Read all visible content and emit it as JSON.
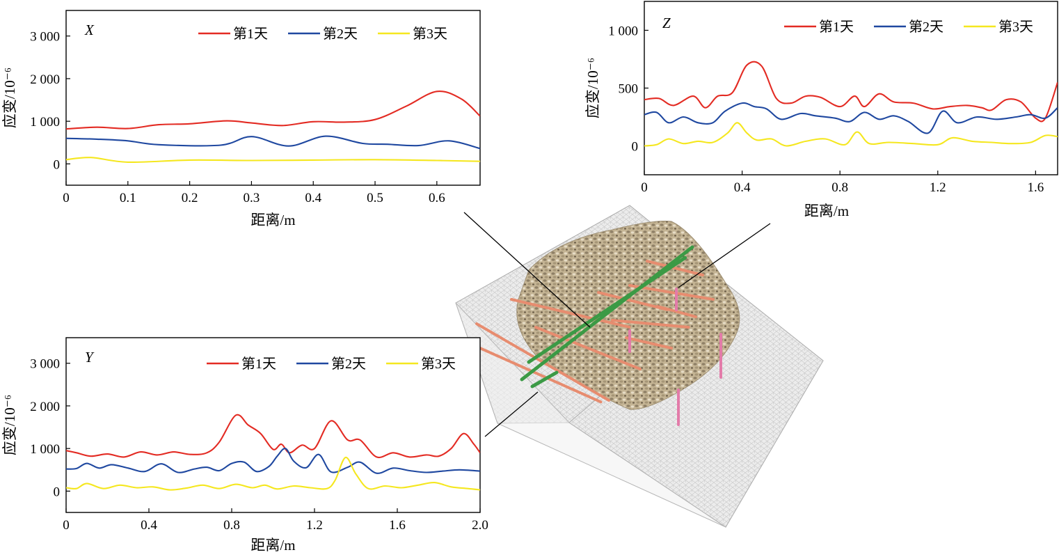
{
  "colors": {
    "day1": "#e32b23",
    "day2": "#1f48a0",
    "day3": "#f5e71f",
    "axis": "#000000"
  },
  "chart_data": [
    {
      "id": "X",
      "type": "line",
      "panel_label": "X",
      "xlabel": "距离/m",
      "ylabel": "应变/10⁻⁶",
      "xlim": [
        0,
        0.67
      ],
      "ylim": [
        -500,
        3600
      ],
      "xticks": [
        0,
        0.1,
        0.2,
        0.3,
        0.4,
        0.5,
        0.6
      ],
      "xtick_labels": [
        "0",
        "0.1",
        "0.2",
        "0.3",
        "0.4",
        "0.5",
        "0.6"
      ],
      "yticks": [
        0,
        1000,
        2000,
        3000
      ],
      "ytick_labels": [
        "0",
        "1 000",
        "2 000",
        "3 000"
      ],
      "legend_position": "top-right",
      "grid": false,
      "series": [
        {
          "name": "第1天",
          "color": "#e32b23",
          "points": [
            [
              0,
              820
            ],
            [
              0.05,
              860
            ],
            [
              0.1,
              830
            ],
            [
              0.15,
              920
            ],
            [
              0.2,
              940
            ],
            [
              0.26,
              1010
            ],
            [
              0.3,
              960
            ],
            [
              0.35,
              900
            ],
            [
              0.4,
              990
            ],
            [
              0.45,
              980
            ],
            [
              0.5,
              1040
            ],
            [
              0.55,
              1350
            ],
            [
              0.6,
              1700
            ],
            [
              0.64,
              1520
            ],
            [
              0.67,
              1120
            ]
          ]
        },
        {
          "name": "第2天",
          "color": "#1f48a0",
          "points": [
            [
              0,
              600
            ],
            [
              0.05,
              580
            ],
            [
              0.1,
              540
            ],
            [
              0.15,
              450
            ],
            [
              0.25,
              440
            ],
            [
              0.3,
              640
            ],
            [
              0.36,
              420
            ],
            [
              0.42,
              650
            ],
            [
              0.48,
              480
            ],
            [
              0.52,
              460
            ],
            [
              0.57,
              430
            ],
            [
              0.62,
              540
            ],
            [
              0.67,
              360
            ]
          ]
        },
        {
          "name": "第3天",
          "color": "#f5e71f",
          "points": [
            [
              0,
              100
            ],
            [
              0.04,
              150
            ],
            [
              0.1,
              40
            ],
            [
              0.2,
              90
            ],
            [
              0.3,
              80
            ],
            [
              0.4,
              90
            ],
            [
              0.5,
              100
            ],
            [
              0.6,
              80
            ],
            [
              0.67,
              60
            ]
          ]
        }
      ]
    },
    {
      "id": "Z",
      "type": "line",
      "panel_label": "Z",
      "xlabel": "距离/m",
      "ylabel": "应变/10⁻⁶",
      "xlim": [
        0,
        1.69
      ],
      "ylim": [
        -250,
        1250
      ],
      "xticks": [
        0,
        0.4,
        0.8,
        1.2,
        1.6
      ],
      "xtick_labels": [
        "0",
        "0.4",
        "0.8",
        "1.2",
        "1.6"
      ],
      "yticks": [
        0,
        500,
        1000
      ],
      "ytick_labels": [
        "0",
        "500",
        "1 000"
      ],
      "legend_position": "top-right",
      "grid": false,
      "series": [
        {
          "name": "第1天",
          "color": "#e32b23",
          "points": [
            [
              0,
              400
            ],
            [
              0.06,
              410
            ],
            [
              0.12,
              350
            ],
            [
              0.2,
              430
            ],
            [
              0.25,
              330
            ],
            [
              0.3,
              430
            ],
            [
              0.36,
              460
            ],
            [
              0.42,
              700
            ],
            [
              0.48,
              690
            ],
            [
              0.54,
              410
            ],
            [
              0.6,
              370
            ],
            [
              0.66,
              430
            ],
            [
              0.72,
              420
            ],
            [
              0.8,
              340
            ],
            [
              0.86,
              430
            ],
            [
              0.9,
              340
            ],
            [
              0.96,
              450
            ],
            [
              1.02,
              380
            ],
            [
              1.1,
              370
            ],
            [
              1.18,
              320
            ],
            [
              1.25,
              340
            ],
            [
              1.32,
              350
            ],
            [
              1.38,
              330
            ],
            [
              1.42,
              310
            ],
            [
              1.48,
              400
            ],
            [
              1.54,
              380
            ],
            [
              1.6,
              240
            ],
            [
              1.64,
              240
            ],
            [
              1.69,
              550
            ]
          ]
        },
        {
          "name": "第2天",
          "color": "#1f48a0",
          "points": [
            [
              0,
              270
            ],
            [
              0.05,
              290
            ],
            [
              0.1,
              200
            ],
            [
              0.16,
              250
            ],
            [
              0.22,
              200
            ],
            [
              0.28,
              200
            ],
            [
              0.33,
              300
            ],
            [
              0.4,
              370
            ],
            [
              0.45,
              340
            ],
            [
              0.5,
              320
            ],
            [
              0.56,
              230
            ],
            [
              0.64,
              280
            ],
            [
              0.7,
              260
            ],
            [
              0.78,
              240
            ],
            [
              0.84,
              210
            ],
            [
              0.9,
              290
            ],
            [
              0.96,
              230
            ],
            [
              1.02,
              260
            ],
            [
              1.08,
              210
            ],
            [
              1.16,
              110
            ],
            [
              1.22,
              300
            ],
            [
              1.28,
              200
            ],
            [
              1.36,
              250
            ],
            [
              1.44,
              230
            ],
            [
              1.52,
              250
            ],
            [
              1.58,
              270
            ],
            [
              1.64,
              240
            ],
            [
              1.69,
              330
            ]
          ]
        },
        {
          "name": "第3天",
          "color": "#f5e71f",
          "points": [
            [
              0,
              0
            ],
            [
              0.05,
              10
            ],
            [
              0.1,
              60
            ],
            [
              0.16,
              20
            ],
            [
              0.22,
              40
            ],
            [
              0.28,
              30
            ],
            [
              0.34,
              110
            ],
            [
              0.38,
              200
            ],
            [
              0.42,
              110
            ],
            [
              0.46,
              50
            ],
            [
              0.52,
              60
            ],
            [
              0.58,
              0
            ],
            [
              0.66,
              40
            ],
            [
              0.74,
              60
            ],
            [
              0.82,
              10
            ],
            [
              0.87,
              120
            ],
            [
              0.92,
              20
            ],
            [
              1.0,
              30
            ],
            [
              1.1,
              20
            ],
            [
              1.2,
              10
            ],
            [
              1.26,
              70
            ],
            [
              1.34,
              40
            ],
            [
              1.42,
              30
            ],
            [
              1.5,
              20
            ],
            [
              1.58,
              30
            ],
            [
              1.64,
              90
            ],
            [
              1.69,
              80
            ]
          ]
        }
      ]
    },
    {
      "id": "Y",
      "type": "line",
      "panel_label": "Y",
      "xlabel": "距离/m",
      "ylabel": "应变/10⁻⁶",
      "xlim": [
        0,
        2.0
      ],
      "ylim": [
        -500,
        3600
      ],
      "xticks": [
        0,
        0.4,
        0.8,
        1.2,
        1.6,
        2.0
      ],
      "xtick_labels": [
        "0",
        "0.4",
        "0.8",
        "1.2",
        "1.6",
        "2.0"
      ],
      "yticks": [
        0,
        1000,
        2000,
        3000
      ],
      "ytick_labels": [
        "0",
        "1 000",
        "2 000",
        "3 000"
      ],
      "legend_position": "top-right",
      "grid": false,
      "series": [
        {
          "name": "第1天",
          "color": "#e32b23",
          "points": [
            [
              0,
              950
            ],
            [
              0.05,
              900
            ],
            [
              0.12,
              820
            ],
            [
              0.2,
              870
            ],
            [
              0.28,
              800
            ],
            [
              0.36,
              920
            ],
            [
              0.44,
              850
            ],
            [
              0.52,
              920
            ],
            [
              0.6,
              860
            ],
            [
              0.68,
              900
            ],
            [
              0.74,
              1150
            ],
            [
              0.82,
              1780
            ],
            [
              0.88,
              1550
            ],
            [
              0.94,
              1350
            ],
            [
              1.0,
              980
            ],
            [
              1.04,
              1100
            ],
            [
              1.08,
              900
            ],
            [
              1.14,
              1080
            ],
            [
              1.2,
              1000
            ],
            [
              1.28,
              1650
            ],
            [
              1.36,
              1200
            ],
            [
              1.42,
              1200
            ],
            [
              1.5,
              800
            ],
            [
              1.58,
              900
            ],
            [
              1.66,
              800
            ],
            [
              1.74,
              850
            ],
            [
              1.8,
              820
            ],
            [
              1.86,
              1000
            ],
            [
              1.92,
              1350
            ],
            [
              1.97,
              1100
            ],
            [
              2.0,
              900
            ]
          ]
        },
        {
          "name": "第2天",
          "color": "#1f48a0",
          "points": [
            [
              0,
              520
            ],
            [
              0.05,
              530
            ],
            [
              0.1,
              650
            ],
            [
              0.16,
              540
            ],
            [
              0.22,
              620
            ],
            [
              0.3,
              540
            ],
            [
              0.38,
              460
            ],
            [
              0.46,
              640
            ],
            [
              0.54,
              440
            ],
            [
              0.62,
              520
            ],
            [
              0.68,
              560
            ],
            [
              0.74,
              480
            ],
            [
              0.8,
              650
            ],
            [
              0.86,
              680
            ],
            [
              0.92,
              460
            ],
            [
              0.98,
              580
            ],
            [
              1.02,
              820
            ],
            [
              1.06,
              1000
            ],
            [
              1.1,
              700
            ],
            [
              1.16,
              550
            ],
            [
              1.22,
              860
            ],
            [
              1.28,
              450
            ],
            [
              1.36,
              560
            ],
            [
              1.42,
              680
            ],
            [
              1.5,
              420
            ],
            [
              1.58,
              540
            ],
            [
              1.66,
              480
            ],
            [
              1.74,
              440
            ],
            [
              1.82,
              470
            ],
            [
              1.9,
              500
            ],
            [
              2.0,
              470
            ]
          ]
        },
        {
          "name": "第3天",
          "color": "#f5e71f",
          "points": [
            [
              0,
              80
            ],
            [
              0.05,
              60
            ],
            [
              0.1,
              180
            ],
            [
              0.18,
              60
            ],
            [
              0.26,
              140
            ],
            [
              0.34,
              80
            ],
            [
              0.42,
              100
            ],
            [
              0.5,
              30
            ],
            [
              0.58,
              70
            ],
            [
              0.66,
              140
            ],
            [
              0.74,
              60
            ],
            [
              0.82,
              160
            ],
            [
              0.9,
              80
            ],
            [
              0.96,
              140
            ],
            [
              1.02,
              50
            ],
            [
              1.1,
              120
            ],
            [
              1.18,
              80
            ],
            [
              1.26,
              60
            ],
            [
              1.3,
              260
            ],
            [
              1.35,
              790
            ],
            [
              1.4,
              400
            ],
            [
              1.46,
              60
            ],
            [
              1.54,
              120
            ],
            [
              1.62,
              80
            ],
            [
              1.7,
              140
            ],
            [
              1.78,
              200
            ],
            [
              1.86,
              100
            ],
            [
              1.94,
              60
            ],
            [
              2.0,
              30
            ]
          ]
        }
      ]
    }
  ],
  "model": {
    "description_free": true,
    "pipe_colors": {
      "green": "#3b9a45",
      "orange": "#e78c6f",
      "pink": "#e37ba9"
    }
  }
}
